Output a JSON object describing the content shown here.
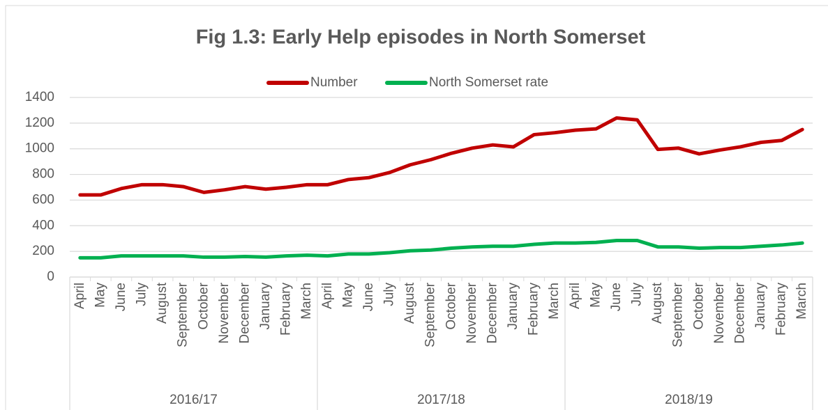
{
  "chart_data": {
    "type": "line",
    "title": "Fig 1.3: Early Help episodes in North Somerset",
    "categories": [
      "April",
      "May",
      "June",
      "July",
      "August",
      "September",
      "October",
      "November",
      "December",
      "January",
      "February",
      "March",
      "April",
      "May",
      "June",
      "July",
      "August",
      "September",
      "October",
      "November",
      "December",
      "January",
      "February",
      "March",
      "April",
      "May",
      "June",
      "July",
      "August",
      "September",
      "October",
      "November",
      "December",
      "January",
      "February",
      "March"
    ],
    "category_groups": [
      "2016/17",
      "2017/18",
      "2018/19"
    ],
    "series": [
      {
        "name": "Number",
        "color": "#c00000",
        "values": [
          640,
          640,
          690,
          720,
          720,
          705,
          660,
          680,
          705,
          685,
          700,
          720,
          720,
          760,
          775,
          815,
          875,
          915,
          965,
          1005,
          1030,
          1015,
          1110,
          1125,
          1145,
          1155,
          1240,
          1225,
          995,
          1005,
          960,
          990,
          1015,
          1050,
          1065,
          1150
        ]
      },
      {
        "name": "North Somerset rate",
        "color": "#00b050",
        "values": [
          150,
          150,
          165,
          165,
          165,
          165,
          155,
          155,
          160,
          155,
          165,
          170,
          165,
          180,
          180,
          190,
          205,
          210,
          225,
          235,
          240,
          240,
          255,
          265,
          265,
          270,
          285,
          285,
          235,
          235,
          225,
          230,
          230,
          240,
          250,
          265
        ]
      }
    ],
    "ylim": [
      0,
      1400
    ],
    "yticks": [
      0,
      200,
      400,
      600,
      800,
      1000,
      1200,
      1400
    ],
    "grid": true,
    "legend": "top"
  }
}
